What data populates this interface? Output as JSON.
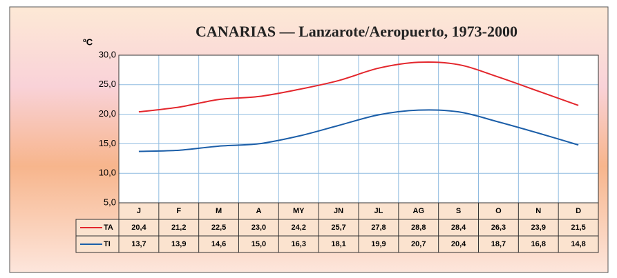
{
  "chart_data": {
    "type": "line",
    "title": "CANARIAS — Lanzarote/Aeropuerto, 1973-2000",
    "y_label": "ºC",
    "categories": [
      "J",
      "F",
      "M",
      "A",
      "MY",
      "JN",
      "JL",
      "AG",
      "S",
      "O",
      "N",
      "D"
    ],
    "series": [
      {
        "name": "TA",
        "color": "#e3262c",
        "values": [
          20.4,
          21.2,
          22.5,
          23.0,
          24.2,
          25.7,
          27.8,
          28.8,
          28.4,
          26.3,
          23.9,
          21.5
        ],
        "value_labels": [
          "20,4",
          "21,2",
          "22,5",
          "23,0",
          "24,2",
          "25,7",
          "27,8",
          "28,8",
          "28,4",
          "26,3",
          "23,9",
          "21,5"
        ]
      },
      {
        "name": "TI",
        "color": "#1b5ea8",
        "values": [
          13.7,
          13.9,
          14.6,
          15.0,
          16.3,
          18.1,
          19.9,
          20.7,
          20.4,
          18.7,
          16.8,
          14.8
        ],
        "value_labels": [
          "13,7",
          "13,9",
          "14,6",
          "15,0",
          "16,3",
          "18,1",
          "19,9",
          "20,7",
          "20,4",
          "18,7",
          "16,8",
          "14,8"
        ]
      }
    ],
    "ylim": [
      5,
      30
    ],
    "yticks": [
      {
        "value": 5,
        "label": "5,0"
      },
      {
        "value": 10,
        "label": "10,0"
      },
      {
        "value": 15,
        "label": "15,0"
      },
      {
        "value": 20,
        "label": "20,0"
      },
      {
        "value": 25,
        "label": "25,0"
      },
      {
        "value": 30,
        "label": "30,0"
      }
    ],
    "grid": true
  }
}
